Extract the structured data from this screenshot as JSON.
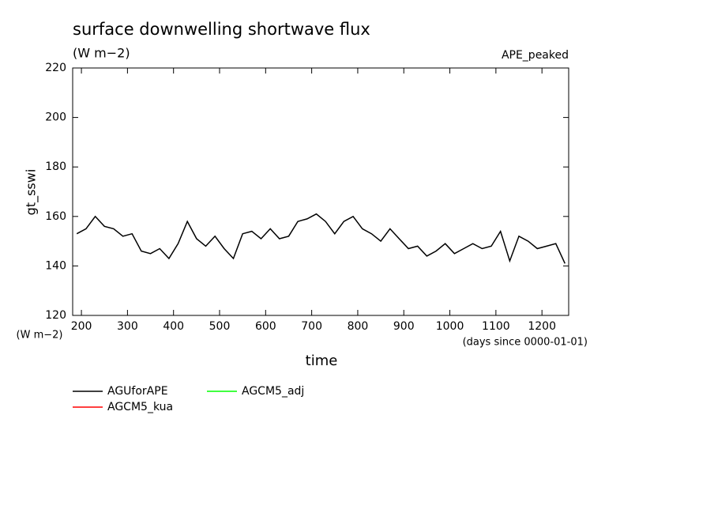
{
  "chart_data": {
    "type": "line",
    "title": "surface downwelling shortwave flux",
    "subtitle": "(W m−2)",
    "annotation": "APE_peaked",
    "y_label": "gt_sswi",
    "y_unit": "(W m−2)",
    "x_label": "time",
    "x_unit": "(days since 0000-01-01)",
    "x": [
      190,
      210,
      230,
      250,
      270,
      290,
      310,
      330,
      350,
      370,
      390,
      410,
      430,
      450,
      470,
      490,
      510,
      530,
      550,
      570,
      590,
      610,
      630,
      650,
      670,
      690,
      710,
      730,
      750,
      770,
      790,
      810,
      830,
      850,
      870,
      890,
      910,
      930,
      950,
      970,
      990,
      1010,
      1030,
      1050,
      1070,
      1090,
      1110,
      1130,
      1150,
      1170,
      1190,
      1210,
      1230,
      1250
    ],
    "series": [
      {
        "name": "AGUforAPE",
        "color": "#000000",
        "values": [
          153,
          155,
          160,
          156,
          155,
          152,
          153,
          146,
          145,
          147,
          143,
          149,
          158,
          151,
          148,
          152,
          147,
          143,
          153,
          154,
          151,
          155,
          151,
          152,
          158,
          159,
          161,
          158,
          153,
          158,
          160,
          155,
          153,
          150,
          155,
          151,
          147,
          148,
          144,
          146,
          149,
          145,
          147,
          149,
          147,
          148,
          154,
          142,
          152,
          150,
          147,
          148,
          149,
          141
        ]
      },
      {
        "name": "AGCM5_kua",
        "color": "#ff0000",
        "values": [
          null,
          null,
          null,
          null,
          null,
          null,
          null,
          null,
          null,
          null,
          null,
          null,
          null,
          null,
          null,
          null,
          null,
          null,
          null,
          null,
          null,
          null,
          null,
          null,
          null,
          null,
          null,
          null,
          null,
          null,
          null,
          null,
          null,
          null,
          null,
          null,
          null,
          null,
          null,
          null,
          null,
          null,
          null,
          null,
          null,
          null,
          null,
          null,
          null,
          null,
          null,
          null,
          null,
          null
        ]
      },
      {
        "name": "AGCM5_adj",
        "color": "#00ff00",
        "values": [
          null,
          null,
          null,
          null,
          null,
          null,
          null,
          null,
          null,
          null,
          null,
          null,
          null,
          null,
          null,
          null,
          null,
          null,
          null,
          null,
          null,
          null,
          null,
          null,
          null,
          null,
          null,
          null,
          null,
          null,
          null,
          null,
          null,
          null,
          null,
          null,
          null,
          null,
          null,
          null,
          null,
          null,
          null,
          null,
          null,
          null,
          null,
          null,
          null,
          null,
          null,
          null,
          null,
          null
        ]
      }
    ],
    "xlim": [
      181,
      1258
    ],
    "xticks": [
      200,
      300,
      400,
      500,
      600,
      700,
      800,
      900,
      1000,
      1100,
      1200
    ],
    "ylim": [
      120,
      220
    ],
    "yticks": [
      120,
      140,
      160,
      180,
      200,
      220
    ]
  }
}
